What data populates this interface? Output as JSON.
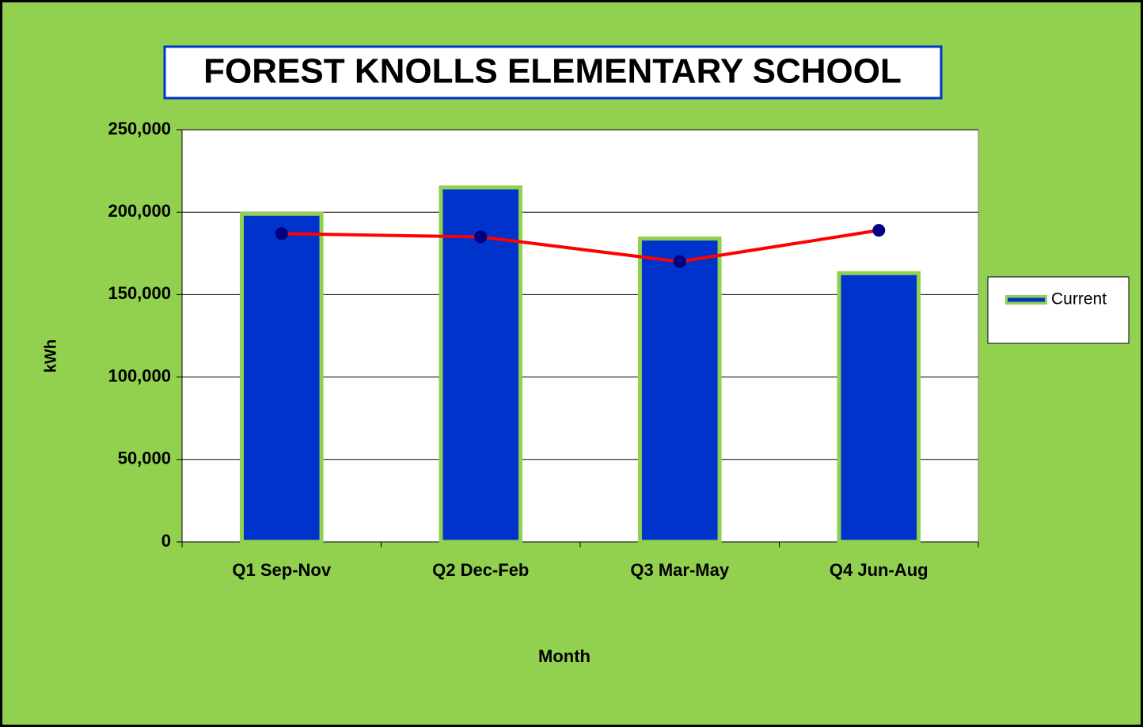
{
  "chart_data": {
    "type": "bar",
    "title": "FOREST KNOLLS ELEMENTARY SCHOOL",
    "x_label": "Month",
    "y_label": "kWh",
    "categories": [
      "Q1 Sep-Nov",
      "Q2 Dec-Feb",
      "Q3 Mar-May",
      "Q4 Jun-Aug"
    ],
    "series": [
      {
        "name": "Current",
        "type": "bar",
        "color": "#0033cc",
        "values": [
          199000,
          215000,
          184000,
          163000
        ]
      },
      {
        "type": "line",
        "color": "#ff0000",
        "marker_color": "#000080",
        "values": [
          187000,
          185000,
          170000,
          189000
        ]
      }
    ],
    "ylim": [
      0,
      250000
    ],
    "yticks": [
      0,
      {
        "value": 50000,
        "label": "50,000"
      },
      {
        "value": 100000,
        "label": "100,000"
      },
      {
        "value": 150000,
        "label": "150,000"
      },
      {
        "value": 200000,
        "label": "200,000"
      },
      {
        "value": 250000,
        "label": "250,000"
      }
    ],
    "grid": true,
    "legend": "right"
  }
}
